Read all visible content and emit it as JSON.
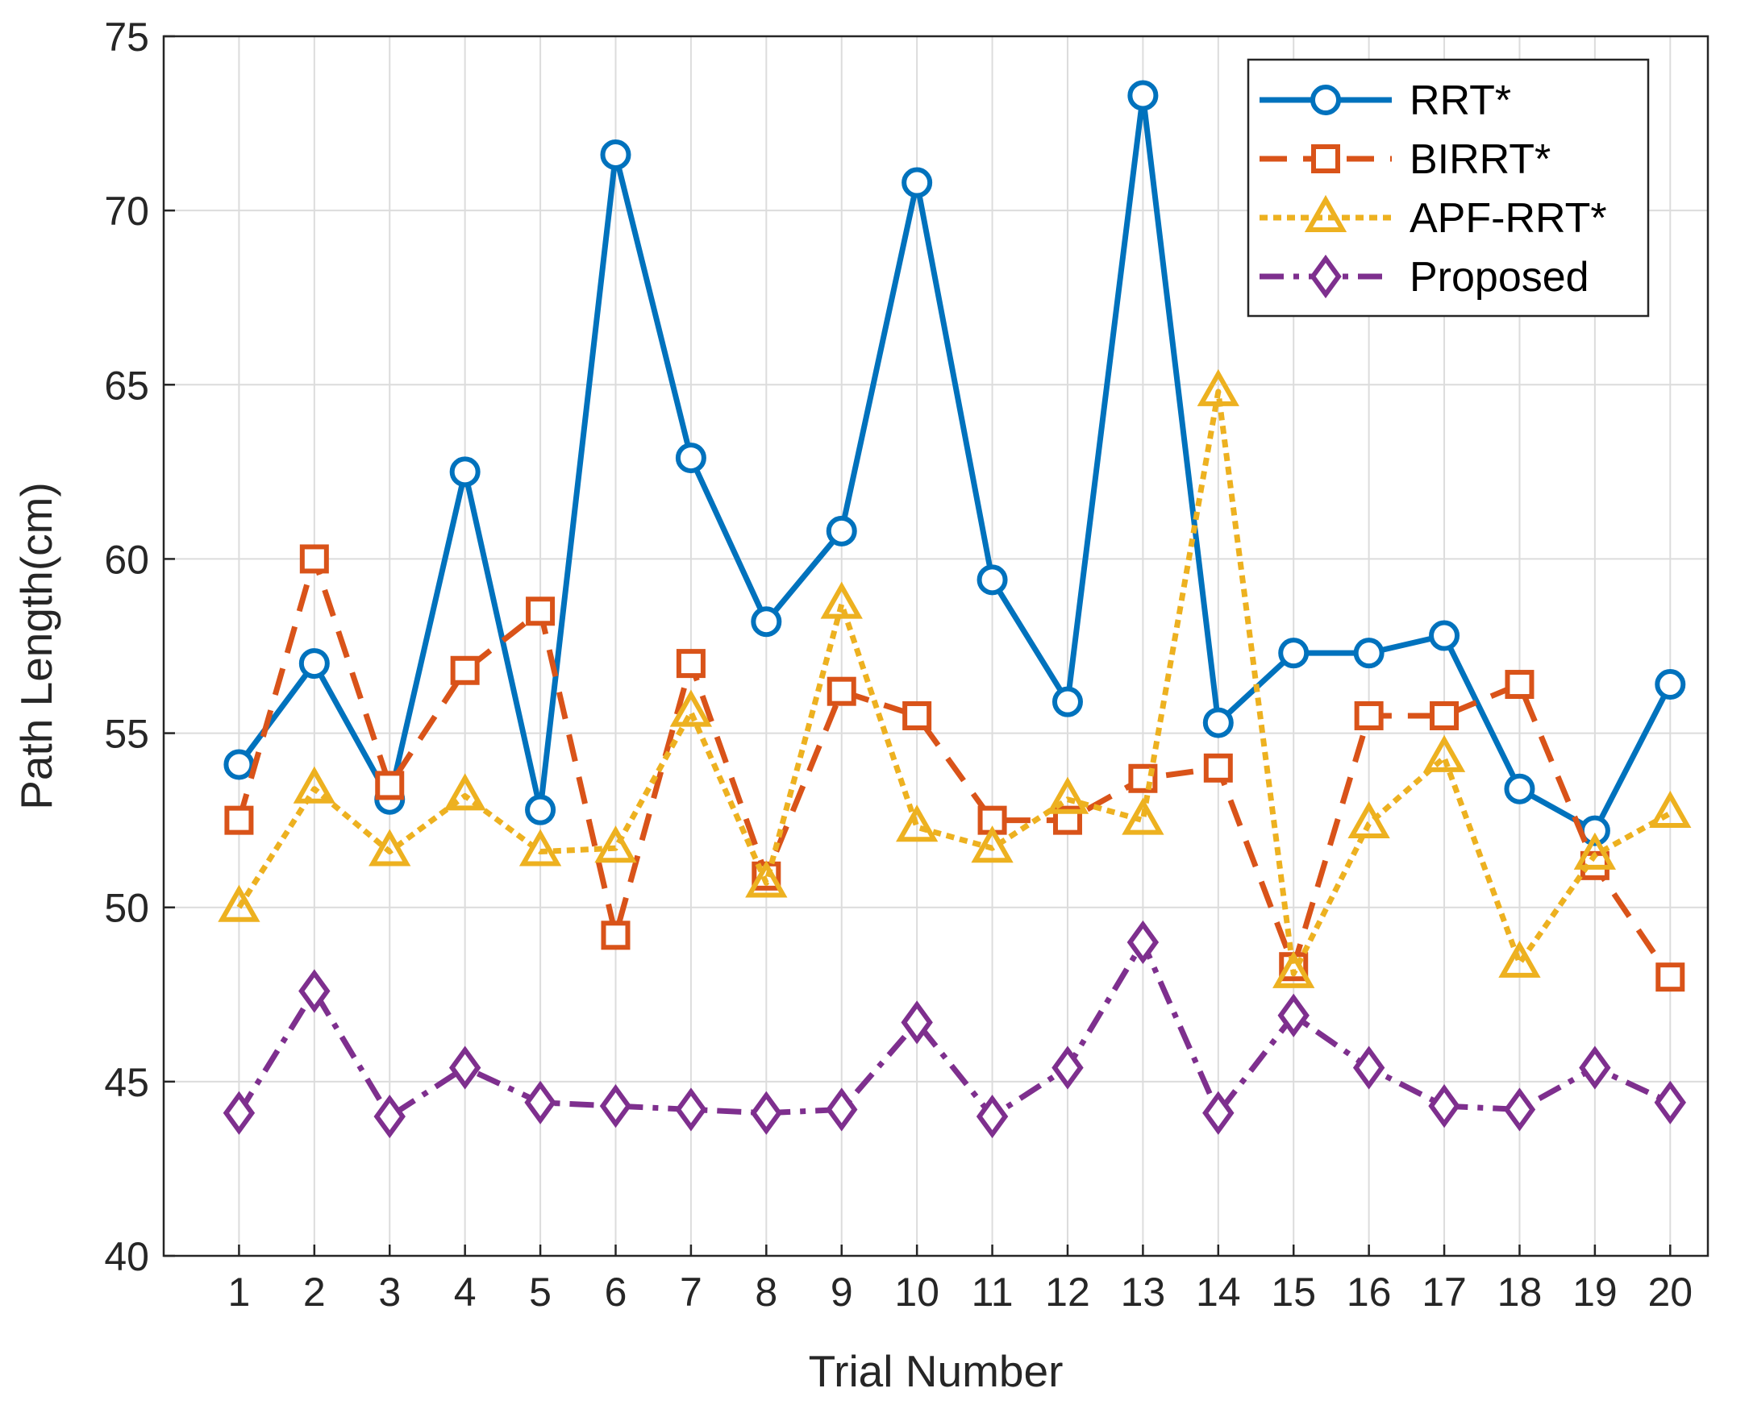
{
  "chart_data": {
    "type": "line",
    "title": "",
    "xlabel": "Trial Number",
    "ylabel": "Path Length(cm)",
    "x": [
      1,
      2,
      3,
      4,
      5,
      6,
      7,
      8,
      9,
      10,
      11,
      12,
      13,
      14,
      15,
      16,
      17,
      18,
      19,
      20
    ],
    "xlim": [
      0,
      20
    ],
    "ylim": [
      40,
      75
    ],
    "yticks": [
      40,
      45,
      50,
      55,
      60,
      65,
      70,
      75
    ],
    "grid": true,
    "legend_position": "top-right",
    "series": [
      {
        "name": "RRT*",
        "color": "#0072BD",
        "marker": "circle",
        "dash": "solid",
        "values": [
          54.1,
          57.0,
          53.1,
          62.5,
          52.8,
          71.6,
          62.9,
          58.2,
          60.8,
          70.8,
          59.4,
          55.9,
          73.3,
          55.3,
          57.3,
          57.3,
          57.8,
          53.4,
          52.2,
          56.4
        ]
      },
      {
        "name": "BIRRT*",
        "color": "#D95319",
        "marker": "square",
        "dash": "dashed",
        "values": [
          52.5,
          60.0,
          53.5,
          56.8,
          58.5,
          49.2,
          57.0,
          50.9,
          56.2,
          55.5,
          52.5,
          52.5,
          53.7,
          54.0,
          48.3,
          55.5,
          55.5,
          56.4,
          51.2,
          48.0
        ]
      },
      {
        "name": "APF-RRT*",
        "color": "#EDB120",
        "marker": "triangle",
        "dash": "dotted",
        "values": [
          50.0,
          53.4,
          51.6,
          53.2,
          51.6,
          51.7,
          55.6,
          50.7,
          58.7,
          52.3,
          51.7,
          53.1,
          52.5,
          64.8,
          48.1,
          52.4,
          54.3,
          48.4,
          51.5,
          52.7
        ]
      },
      {
        "name": "Proposed",
        "color": "#7E2F8E",
        "marker": "diamond",
        "dash": "dashdot",
        "values": [
          44.1,
          47.6,
          44.0,
          45.4,
          44.4,
          44.3,
          44.2,
          44.1,
          44.2,
          46.7,
          44.0,
          45.4,
          49.0,
          44.1,
          46.9,
          45.4,
          44.3,
          44.2,
          45.4,
          44.4
        ]
      }
    ]
  }
}
